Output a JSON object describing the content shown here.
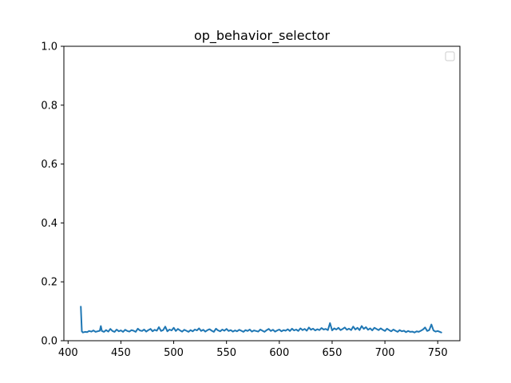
{
  "chart_data": {
    "type": "line",
    "title": "op_behavior_selector",
    "xlabel": "",
    "ylabel": "",
    "xlim": [
      396,
      771
    ],
    "ylim": [
      0.0,
      1.0
    ],
    "x_ticks": [
      400,
      450,
      500,
      550,
      600,
      650,
      700,
      750
    ],
    "x_tick_labels": [
      "400",
      "450",
      "500",
      "550",
      "600",
      "650",
      "700",
      "750"
    ],
    "y_ticks": [
      0.0,
      0.2,
      0.4,
      0.6,
      0.8,
      1.0
    ],
    "y_tick_labels": [
      "0.0",
      "0.2",
      "0.4",
      "0.6",
      "0.8",
      "1.0"
    ],
    "grid": false,
    "legend": {
      "position": "top-right",
      "entries": []
    },
    "series": [
      {
        "color": "#1f77b4",
        "x": [
          412,
          413,
          414,
          416,
          418,
          420,
          422,
          424,
          426,
          428,
          430,
          431,
          432,
          434,
          436,
          438,
          440,
          442,
          444,
          446,
          448,
          450,
          452,
          454,
          456,
          458,
          460,
          462,
          464,
          466,
          468,
          470,
          472,
          474,
          476,
          478,
          480,
          482,
          484,
          486,
          488,
          490,
          492,
          494,
          496,
          498,
          500,
          502,
          504,
          506,
          508,
          510,
          512,
          514,
          516,
          518,
          520,
          522,
          524,
          526,
          528,
          530,
          532,
          534,
          536,
          538,
          540,
          542,
          544,
          546,
          548,
          550,
          552,
          554,
          556,
          558,
          560,
          562,
          564,
          566,
          568,
          570,
          572,
          574,
          576,
          578,
          580,
          582,
          584,
          586,
          588,
          590,
          592,
          594,
          596,
          598,
          600,
          602,
          604,
          606,
          608,
          610,
          612,
          614,
          616,
          618,
          620,
          622,
          624,
          626,
          628,
          630,
          632,
          634,
          636,
          638,
          640,
          642,
          644,
          646,
          648,
          650,
          652,
          654,
          656,
          658,
          660,
          662,
          664,
          666,
          668,
          670,
          672,
          674,
          676,
          678,
          680,
          682,
          684,
          686,
          688,
          690,
          692,
          694,
          696,
          698,
          700,
          702,
          704,
          706,
          708,
          710,
          712,
          714,
          716,
          718,
          720,
          722,
          724,
          726,
          728,
          730,
          732,
          734,
          736,
          738,
          740,
          742,
          744,
          746,
          748,
          750,
          752,
          754
        ],
        "y": [
          0.118,
          0.032,
          0.028,
          0.03,
          0.029,
          0.033,
          0.031,
          0.035,
          0.03,
          0.032,
          0.034,
          0.05,
          0.033,
          0.03,
          0.036,
          0.031,
          0.04,
          0.033,
          0.03,
          0.038,
          0.032,
          0.035,
          0.03,
          0.037,
          0.033,
          0.031,
          0.036,
          0.034,
          0.03,
          0.041,
          0.035,
          0.033,
          0.038,
          0.031,
          0.036,
          0.04,
          0.032,
          0.037,
          0.034,
          0.046,
          0.033,
          0.036,
          0.048,
          0.032,
          0.038,
          0.035,
          0.044,
          0.033,
          0.04,
          0.035,
          0.031,
          0.037,
          0.034,
          0.03,
          0.036,
          0.032,
          0.038,
          0.035,
          0.042,
          0.033,
          0.037,
          0.031,
          0.036,
          0.039,
          0.034,
          0.03,
          0.041,
          0.035,
          0.032,
          0.038,
          0.034,
          0.04,
          0.033,
          0.036,
          0.031,
          0.035,
          0.032,
          0.037,
          0.034,
          0.03,
          0.036,
          0.033,
          0.038,
          0.031,
          0.035,
          0.033,
          0.031,
          0.038,
          0.034,
          0.03,
          0.036,
          0.04,
          0.033,
          0.037,
          0.031,
          0.035,
          0.038,
          0.032,
          0.036,
          0.034,
          0.039,
          0.033,
          0.041,
          0.035,
          0.038,
          0.033,
          0.042,
          0.036,
          0.04,
          0.034,
          0.045,
          0.037,
          0.041,
          0.035,
          0.039,
          0.036,
          0.043,
          0.038,
          0.04,
          0.036,
          0.06,
          0.035,
          0.042,
          0.038,
          0.044,
          0.036,
          0.04,
          0.045,
          0.037,
          0.041,
          0.036,
          0.048,
          0.038,
          0.044,
          0.036,
          0.05,
          0.04,
          0.046,
          0.037,
          0.042,
          0.035,
          0.044,
          0.04,
          0.036,
          0.042,
          0.037,
          0.033,
          0.041,
          0.036,
          0.032,
          0.038,
          0.034,
          0.03,
          0.036,
          0.032,
          0.034,
          0.029,
          0.033,
          0.03,
          0.031,
          0.028,
          0.032,
          0.03,
          0.034,
          0.038,
          0.045,
          0.033,
          0.036,
          0.055,
          0.035,
          0.031,
          0.033,
          0.03,
          0.027
        ]
      }
    ]
  }
}
